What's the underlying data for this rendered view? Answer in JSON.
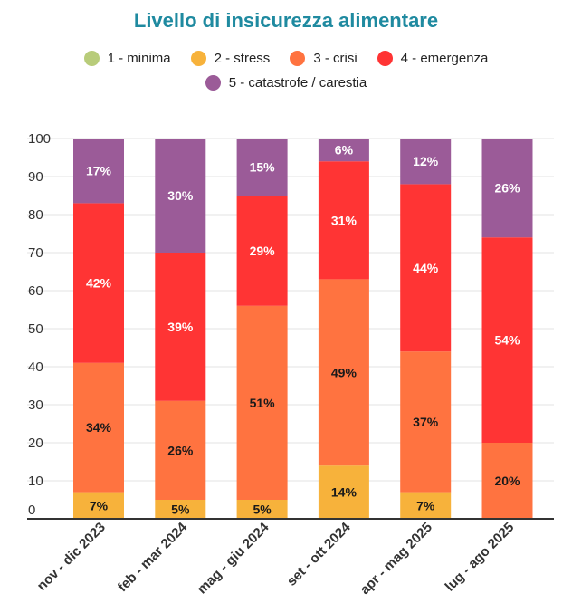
{
  "chart_data": {
    "type": "bar",
    "stacked": true,
    "title": "Livello di insicurezza alimentare",
    "xlabel": "",
    "ylabel": "",
    "ylim": [
      0,
      100
    ],
    "yticks": [
      0,
      10,
      20,
      30,
      40,
      50,
      60,
      70,
      80,
      90,
      100
    ],
    "categories": [
      "nov - dic 2023",
      "feb - mar 2024",
      "mag - giu 2024",
      "set - ott 2024",
      "apr - mag 2025",
      "lug - ago 2025"
    ],
    "series": [
      {
        "name": "1 - minima",
        "color": "#b8cc7a",
        "values": [
          0,
          0,
          0,
          0,
          0,
          0
        ],
        "labels": [
          "",
          "",
          "",
          "",
          "",
          ""
        ]
      },
      {
        "name": "2 - stress",
        "color": "#f7b23b",
        "values": [
          7,
          5,
          5,
          14,
          7,
          0
        ],
        "labels": [
          "7%",
          "5%",
          "5%",
          "14%",
          "7%",
          ""
        ]
      },
      {
        "name": "3 - crisi",
        "color": "#ff7340",
        "values": [
          34,
          26,
          51,
          49,
          37,
          20
        ],
        "labels": [
          "34%",
          "26%",
          "51%",
          "49%",
          "37%",
          "20%"
        ]
      },
      {
        "name": "4 - emergenza",
        "color": "#ff3434",
        "values": [
          42,
          39,
          29,
          31,
          44,
          54
        ],
        "labels": [
          "42%",
          "39%",
          "29%",
          "31%",
          "44%",
          "54%"
        ]
      },
      {
        "name": "5 - catastrofe / carestia",
        "color": "#9b5b98",
        "values": [
          17,
          30,
          15,
          6,
          12,
          26
        ],
        "labels": [
          "17%",
          "30%",
          "15%",
          "6%",
          "12%",
          "26%"
        ]
      }
    ],
    "grid": true,
    "legend_position": "top"
  }
}
